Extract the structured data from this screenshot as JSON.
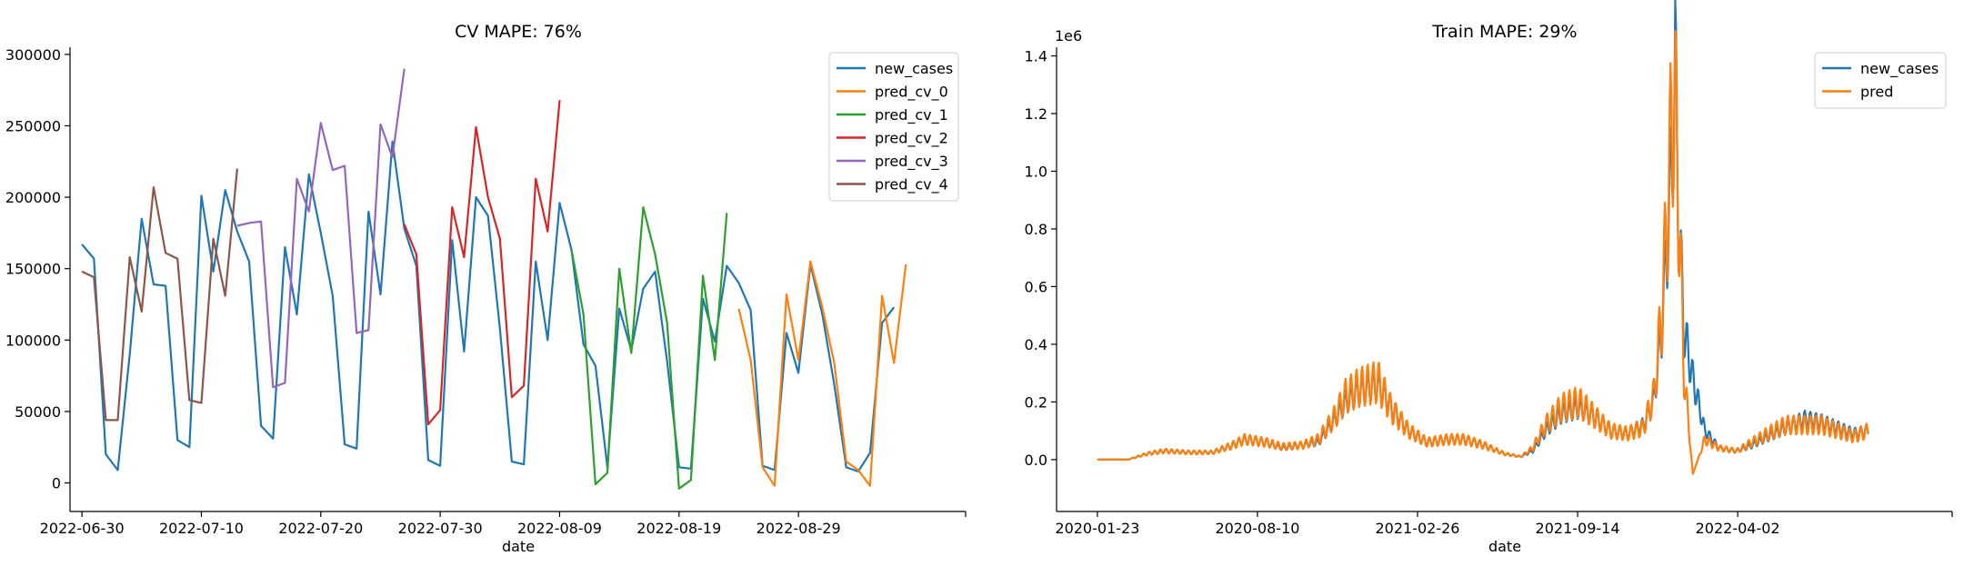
{
  "chart_data": [
    {
      "type": "line",
      "title": "CV MAPE: 76%",
      "xlabel": "date",
      "ylabel": "",
      "ylim": [
        -20000,
        305000
      ],
      "xlim": [
        "2022-06-29",
        "2022-09-12"
      ],
      "grid": false,
      "legend": "top-right",
      "x_ticks": [
        "2022-06-30",
        "2022-07-10",
        "2022-07-20",
        "2022-07-30",
        "2022-08-09",
        "2022-08-19",
        "2022-08-29"
      ],
      "y_ticks": [
        0,
        50000,
        100000,
        150000,
        200000,
        250000,
        300000
      ],
      "y_tick_labels": [
        "0",
        "50000",
        "100000",
        "150000",
        "200000",
        "250000",
        "300000"
      ],
      "series": [
        {
          "name": "new_cases",
          "color": "#1f77b4",
          "start": "2022-06-30",
          "values": [
            167000,
            157000,
            20000,
            9000,
            90000,
            185000,
            139000,
            138000,
            30000,
            25000,
            201000,
            148000,
            205000,
            176000,
            155000,
            40000,
            31000,
            165000,
            118000,
            216000,
            175000,
            131000,
            27000,
            24000,
            190000,
            132000,
            239000,
            178000,
            152000,
            16000,
            12000,
            170000,
            92000,
            200000,
            187000,
            108000,
            15000,
            13000,
            155000,
            100000,
            196000,
            163000,
            97000,
            82000,
            11000,
            122000,
            93000,
            136000,
            148000,
            85000,
            11000,
            10000,
            129000,
            99000,
            152000,
            140000,
            121000,
            12000,
            9000,
            105000,
            77000,
            153000,
            118000,
            69000,
            11000,
            8000,
            21000,
            112000,
            123000
          ]
        },
        {
          "name": "pred_cv_0",
          "color": "#ff7f0e",
          "start": "2022-08-24",
          "values": [
            122000,
            86000,
            11000,
            -2000,
            132000,
            86000,
            155000,
            123000,
            84000,
            15000,
            9000,
            -2000,
            131000,
            84000,
            153000
          ]
        },
        {
          "name": "pred_cv_1",
          "color": "#2ca02c",
          "start": "2022-08-10",
          "values": [
            163000,
            118000,
            -1000,
            7000,
            150000,
            91000,
            193000,
            160000,
            112000,
            -4000,
            2000,
            145000,
            86000,
            189000
          ]
        },
        {
          "name": "pred_cv_2",
          "color": "#d62728",
          "start": "2022-07-27",
          "values": [
            181000,
            160000,
            41000,
            51000,
            193000,
            158000,
            249000,
            200000,
            171000,
            60000,
            68000,
            213000,
            176000,
            268000
          ]
        },
        {
          "name": "pred_cv_3",
          "color": "#9467bd",
          "start": "2022-07-13",
          "values": [
            180000,
            182000,
            183000,
            67000,
            70000,
            213000,
            190000,
            252000,
            219000,
            222000,
            105000,
            107000,
            251000,
            228000,
            290000
          ]
        },
        {
          "name": "pred_cv_4",
          "color": "#8c564b",
          "start": "2022-06-30",
          "values": [
            148000,
            144000,
            44000,
            44000,
            158000,
            120000,
            207000,
            161000,
            157000,
            58000,
            56000,
            171000,
            131000,
            220000
          ]
        }
      ]
    },
    {
      "type": "line",
      "title": "Train MAPE: 29%",
      "xlabel": "date",
      "ylabel": "",
      "y_offset_label": "1e6",
      "ylim": [
        -0.18,
        1.43
      ],
      "xlim": [
        "2019-12-03",
        "2022-12-26"
      ],
      "grid": false,
      "legend": "top-right",
      "x_ticks": [
        "2020-01-23",
        "2020-08-10",
        "2021-02-26",
        "2021-09-14",
        "2022-04-02"
      ],
      "y_ticks": [
        0.0,
        0.2,
        0.4,
        0.6,
        0.8,
        1.0,
        1.2,
        1.4
      ],
      "y_tick_labels": [
        "0.0",
        "0.2",
        "0.4",
        "0.6",
        "0.8",
        "1.0",
        "1.2",
        "1.4"
      ],
      "series": [
        {
          "name": "new_cases",
          "color": "#1f77b4",
          "x": [
            "2020-01-23",
            "2020-03-01",
            "2020-03-25",
            "2020-04-15",
            "2020-05-15",
            "2020-06-15",
            "2020-07-10",
            "2020-07-25",
            "2020-08-20",
            "2020-09-10",
            "2020-10-05",
            "2020-10-25",
            "2020-11-15",
            "2020-11-28",
            "2020-12-15",
            "2021-01-08",
            "2021-01-25",
            "2021-02-15",
            "2021-03-10",
            "2021-04-05",
            "2021-04-25",
            "2021-05-20",
            "2021-06-15",
            "2021-07-05",
            "2021-07-20",
            "2021-08-05",
            "2021-08-25",
            "2021-09-15",
            "2021-10-05",
            "2021-10-25",
            "2021-11-15",
            "2021-12-05",
            "2021-12-18",
            "2021-12-28",
            "2022-01-05",
            "2022-01-10",
            "2022-01-14",
            "2022-01-18",
            "2022-01-25",
            "2022-02-05",
            "2022-02-20",
            "2022-03-10",
            "2022-04-01",
            "2022-04-20",
            "2022-05-10",
            "2022-06-01",
            "2022-06-25",
            "2022-07-15",
            "2022-08-05",
            "2022-08-25",
            "2022-09-12"
          ],
          "values": [
            0.0,
            0.0,
            0.02,
            0.03,
            0.025,
            0.025,
            0.05,
            0.07,
            0.06,
            0.04,
            0.05,
            0.06,
            0.14,
            0.2,
            0.24,
            0.26,
            0.18,
            0.1,
            0.06,
            0.07,
            0.07,
            0.05,
            0.02,
            0.01,
            0.03,
            0.1,
            0.16,
            0.18,
            0.15,
            0.1,
            0.09,
            0.12,
            0.2,
            0.45,
            0.8,
            1.05,
            1.36,
            0.85,
            0.45,
            0.28,
            0.1,
            0.04,
            0.03,
            0.05,
            0.08,
            0.11,
            0.14,
            0.13,
            0.11,
            0.09,
            0.1
          ]
        },
        {
          "name": "pred",
          "color": "#ff7f0e",
          "x": [
            "2020-01-23",
            "2020-03-01",
            "2020-03-25",
            "2020-04-15",
            "2020-05-15",
            "2020-06-15",
            "2020-07-10",
            "2020-07-25",
            "2020-08-20",
            "2020-09-10",
            "2020-10-05",
            "2020-10-25",
            "2020-11-15",
            "2020-11-28",
            "2020-12-15",
            "2021-01-08",
            "2021-01-25",
            "2021-02-15",
            "2021-03-10",
            "2021-04-05",
            "2021-04-25",
            "2021-05-20",
            "2021-06-15",
            "2021-07-05",
            "2021-07-20",
            "2021-08-05",
            "2021-08-25",
            "2021-09-15",
            "2021-10-05",
            "2021-10-25",
            "2021-11-15",
            "2021-12-05",
            "2021-12-18",
            "2021-12-28",
            "2022-01-05",
            "2022-01-10",
            "2022-01-14",
            "2022-01-18",
            "2022-01-25",
            "2022-02-05",
            "2022-02-20",
            "2022-03-10",
            "2022-04-01",
            "2022-04-20",
            "2022-05-10",
            "2022-06-01",
            "2022-06-25",
            "2022-07-15",
            "2022-08-05",
            "2022-08-25",
            "2022-09-12"
          ],
          "values": [
            0.0,
            0.0,
            0.02,
            0.03,
            0.025,
            0.025,
            0.05,
            0.07,
            0.06,
            0.045,
            0.05,
            0.07,
            0.15,
            0.22,
            0.25,
            0.27,
            0.17,
            0.1,
            0.06,
            0.07,
            0.07,
            0.05,
            0.02,
            0.01,
            0.04,
            0.12,
            0.18,
            0.2,
            0.15,
            0.1,
            0.09,
            0.11,
            0.22,
            0.5,
            0.9,
            1.2,
            1.22,
            0.9,
            0.3,
            -0.05,
            0.07,
            0.04,
            0.03,
            0.06,
            0.09,
            0.12,
            0.12,
            0.12,
            0.1,
            0.08,
            0.1
          ],
          "oscillation": "weekly"
        }
      ]
    }
  ]
}
